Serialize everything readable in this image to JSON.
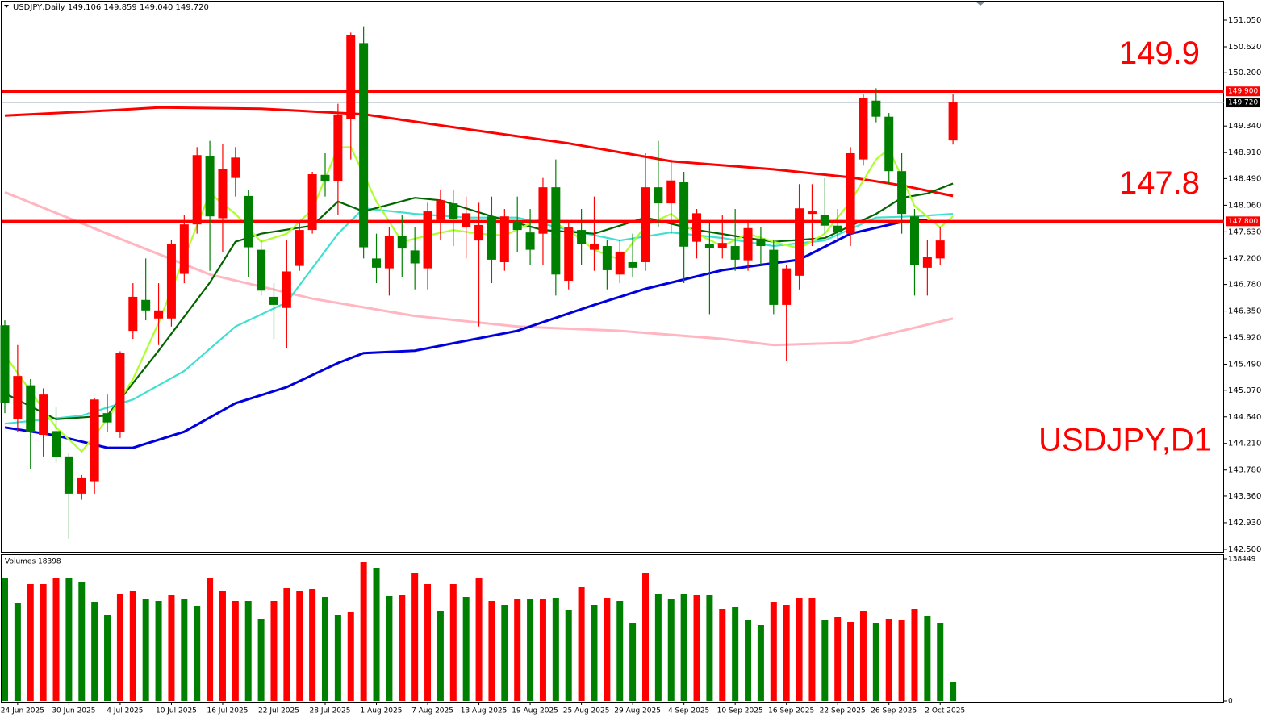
{
  "chart_data": {
    "type": "candlestick",
    "title": "USDJPY,Daily  149.106 149.859 149.040 149.720",
    "annotation": "USDJPY,D1",
    "up_color": "#ff0000",
    "down_color": "#008000",
    "categories": [
      null,
      "24 Jun 2025",
      null,
      null,
      null,
      "30 Jun 2025",
      null,
      null,
      null,
      "4 Jul 2025",
      null,
      null,
      null,
      "10 Jul 2025",
      null,
      null,
      null,
      "16 Jul 2025",
      null,
      null,
      null,
      "22 Jul 2025",
      null,
      null,
      null,
      "28 Jul 2025",
      null,
      null,
      null,
      "1 Aug 2025",
      null,
      null,
      null,
      "7 Aug 2025",
      null,
      null,
      null,
      "13 Aug 2025",
      null,
      null,
      null,
      "19 Aug 2025",
      null,
      null,
      null,
      "25 Aug 2025",
      null,
      null,
      null,
      "29 Aug 2025",
      null,
      null,
      null,
      "4 Sep 2025",
      null,
      null,
      null,
      "10 Sep 2025",
      null,
      null,
      null,
      "16 Sep 2025",
      null,
      null,
      null,
      "22 Sep 2025",
      null,
      null,
      null,
      "26 Sep 2025",
      null,
      null,
      null,
      "2 Oct 2025",
      null
    ],
    "open": [
      146.12,
      144.6,
      145.15,
      144.35,
      144.41,
      144.0,
      143.4,
      143.6,
      144.7,
      144.4,
      146.03,
      146.53,
      146.23,
      146.23,
      146.95,
      147.75,
      148.85,
      147.85,
      148.5,
      148.21,
      147.34,
      146.58,
      146.4,
      147.08,
      147.66,
      148.55,
      148.45,
      149.46,
      150.68,
      147.2,
      147.04,
      147.56,
      147.33,
      147.04,
      147.82,
      148.09,
      147.7,
      147.49,
      147.88,
      147.14,
      147.79,
      147.62,
      147.6,
      148.35,
      146.84,
      147.66,
      147.34,
      147.4,
      146.94,
      147.14,
      147.14,
      148.35,
      148.09,
      148.43,
      147.47,
      147.43,
      147.37,
      147.4,
      147.17,
      147.52,
      147.34,
      146.45,
      146.92,
      147.92,
      147.9,
      147.73,
      147.6,
      148.8,
      149.75,
      149.49,
      148.61,
      147.88,
      147.05,
      147.2,
      149.106
    ],
    "high": [
      146.2,
      145.8,
      145.25,
      145.1,
      144.8,
      144.05,
      143.7,
      144.95,
      145.0,
      145.7,
      146.8,
      147.2,
      146.8,
      147.5,
      147.9,
      149.0,
      149.1,
      149.05,
      149.0,
      148.3,
      147.5,
      146.8,
      147.5,
      147.8,
      148.6,
      148.9,
      149.7,
      150.85,
      150.95,
      147.6,
      147.7,
      147.9,
      147.7,
      148.1,
      148.3,
      148.3,
      148.2,
      148.1,
      148.2,
      148.0,
      148.2,
      148.0,
      148.5,
      148.8,
      147.8,
      148.0,
      148.2,
      147.5,
      147.5,
      147.6,
      148.9,
      149.1,
      148.8,
      148.6,
      148.0,
      147.8,
      147.9,
      148.0,
      147.8,
      147.7,
      147.5,
      147.1,
      148.4,
      148.4,
      148.5,
      148.0,
      149.0,
      149.85,
      149.95,
      149.55,
      148.9,
      148.0,
      147.5,
      147.7,
      149.859
    ],
    "low": [
      144.7,
      144.4,
      143.8,
      144.0,
      143.9,
      142.67,
      143.3,
      143.4,
      144.4,
      144.3,
      145.9,
      146.2,
      145.8,
      146.1,
      146.8,
      147.6,
      147.0,
      147.3,
      148.2,
      146.9,
      146.6,
      145.9,
      145.75,
      147.0,
      147.6,
      148.2,
      147.9,
      148.8,
      147.2,
      146.8,
      146.6,
      146.9,
      146.7,
      146.7,
      147.5,
      147.4,
      147.2,
      146.1,
      146.8,
      147.0,
      147.3,
      147.1,
      147.1,
      146.6,
      146.7,
      147.1,
      147.0,
      146.7,
      146.8,
      146.9,
      147.0,
      147.7,
      147.6,
      146.8,
      147.2,
      146.3,
      147.2,
      147.0,
      147.0,
      147.1,
      146.3,
      145.55,
      146.7,
      147.4,
      147.6,
      147.5,
      147.4,
      148.7,
      149.4,
      148.4,
      147.6,
      146.6,
      146.6,
      147.1,
      149.04
    ],
    "close": [
      144.86,
      145.3,
      144.4,
      145.0,
      143.99,
      143.4,
      143.66,
      144.92,
      144.55,
      145.68,
      146.58,
      146.36,
      146.36,
      147.43,
      147.75,
      148.87,
      147.88,
      148.64,
      148.83,
      147.38,
      146.68,
      146.45,
      146.99,
      147.66,
      148.56,
      148.45,
      149.52,
      150.81,
      147.38,
      147.05,
      147.56,
      147.36,
      147.12,
      147.96,
      148.14,
      147.83,
      147.93,
      147.74,
      147.18,
      147.88,
      147.66,
      147.34,
      148.35,
      146.94,
      147.7,
      147.43,
      147.44,
      147.01,
      147.31,
      147.05,
      148.35,
      148.09,
      148.46,
      147.39,
      147.93,
      147.37,
      147.45,
      147.18,
      147.69,
      147.4,
      146.45,
      147.04,
      148.01,
      147.96,
      147.73,
      147.62,
      148.9,
      149.79,
      149.49,
      148.61,
      147.92,
      147.1,
      147.23,
      147.49,
      149.72
    ],
    "ylim": [
      142.46,
      151.35
    ],
    "yticks": [
      {
        "value": 151.05,
        "label": "151.050"
      },
      {
        "value": 150.62,
        "label": "150.620"
      },
      {
        "value": 150.2,
        "label": "150.200"
      },
      {
        "value": 149.34,
        "label": "149.340"
      },
      {
        "value": 148.91,
        "label": "148.910"
      },
      {
        "value": 148.49,
        "label": "148.490"
      },
      {
        "value": 148.06,
        "label": "148.060"
      },
      {
        "value": 147.63,
        "label": "147.630"
      },
      {
        "value": 147.2,
        "label": "147.200"
      },
      {
        "value": 146.78,
        "label": "146.780"
      },
      {
        "value": 146.35,
        "label": "146.350"
      },
      {
        "value": 145.92,
        "label": "145.920"
      },
      {
        "value": 145.49,
        "label": "145.490"
      },
      {
        "value": 145.07,
        "label": "145.070"
      },
      {
        "value": 144.64,
        "label": "144.640"
      },
      {
        "value": 144.21,
        "label": "144.210"
      },
      {
        "value": 143.78,
        "label": "143.780"
      },
      {
        "value": 143.36,
        "label": "143.360"
      },
      {
        "value": 142.93,
        "label": "142.930"
      },
      {
        "value": 142.5,
        "label": "142.500"
      }
    ],
    "series": [
      {
        "color": "#ffb6c1",
        "x": [
          0,
          8,
          16,
          24,
          32,
          40,
          48,
          56,
          60,
          66,
          70,
          74
        ],
        "values": [
          148.27,
          147.6,
          146.94,
          146.55,
          146.27,
          146.1,
          146.03,
          145.9,
          145.8,
          145.84,
          146.03,
          146.23
        ]
      },
      {
        "color": "#ff0000",
        "x": [
          0,
          8,
          12,
          20,
          28,
          36,
          44,
          52,
          60,
          66,
          70,
          74
        ],
        "values": [
          149.51,
          149.59,
          149.64,
          149.62,
          149.53,
          149.29,
          149.06,
          148.77,
          148.64,
          148.51,
          148.38,
          148.21
        ]
      },
      {
        "color": "#0000dd",
        "x": [
          0,
          4,
          8,
          10,
          14,
          18,
          22,
          26,
          28,
          32,
          40,
          46,
          50,
          56,
          62,
          66,
          70,
          72
        ],
        "values": [
          144.47,
          144.34,
          144.14,
          144.14,
          144.4,
          144.86,
          145.12,
          145.51,
          145.67,
          145.71,
          146.03,
          146.45,
          146.71,
          147.01,
          147.18,
          147.6,
          147.79,
          147.82
        ]
      },
      {
        "color": "#40e0d0",
        "x": [
          0,
          6,
          10,
          14,
          18,
          22,
          26,
          28,
          32,
          36,
          40,
          44,
          48,
          52,
          56,
          60,
          64,
          68,
          71,
          74
        ],
        "values": [
          144.53,
          144.66,
          144.92,
          145.38,
          146.1,
          146.49,
          147.6,
          148.01,
          147.92,
          147.86,
          147.86,
          147.66,
          147.49,
          147.62,
          147.53,
          147.4,
          147.49,
          147.86,
          147.88,
          147.92
        ]
      },
      {
        "color": "#006400",
        "x": [
          0,
          4,
          8,
          12,
          16,
          18,
          20,
          24,
          26,
          28,
          32,
          34,
          38,
          42,
          46,
          50,
          54,
          58,
          60,
          64,
          68,
          70,
          72,
          74
        ],
        "values": [
          145.02,
          144.6,
          144.66,
          145.71,
          146.81,
          147.47,
          147.6,
          147.73,
          148.12,
          147.96,
          148.18,
          148.14,
          147.88,
          147.66,
          147.6,
          147.86,
          147.66,
          147.53,
          147.47,
          147.53,
          147.92,
          148.18,
          148.25,
          148.41
        ]
      },
      {
        "color": "#adff2f",
        "x": [
          0,
          4,
          6,
          8,
          10,
          12,
          14,
          16,
          18,
          20,
          22,
          24,
          26,
          27,
          29,
          31,
          33,
          35,
          37,
          39,
          42,
          44,
          46,
          48,
          50,
          52,
          54,
          56,
          58,
          60,
          62,
          64,
          66,
          68,
          69,
          71,
          73,
          74
        ],
        "values": [
          145.64,
          144.47,
          144.08,
          144.6,
          145.25,
          146.16,
          147.21,
          148.25,
          147.92,
          147.47,
          147.6,
          147.99,
          148.99,
          149.0,
          148.12,
          147.47,
          147.57,
          147.66,
          147.6,
          147.57,
          147.86,
          147.66,
          147.34,
          147.18,
          147.73,
          147.92,
          147.6,
          147.4,
          147.6,
          147.47,
          147.36,
          147.6,
          148.12,
          148.8,
          148.97,
          148.05,
          147.7,
          147.88
        ]
      }
    ],
    "hlines": [
      {
        "value": 149.9,
        "label": "149.900",
        "text": "149.9",
        "color": "#ff0000"
      },
      {
        "value": 147.8,
        "label": "147.800",
        "text": "147.8",
        "color": "#ff0000"
      }
    ],
    "price_line": {
      "value": 149.72,
      "label": "149.720",
      "color": "#a0a8b8"
    },
    "volume": {
      "label": "Volumes 18398",
      "values": [
        120350,
        95180,
        114060,
        114060,
        120350,
        120350,
        115630,
        96750,
        83380,
        104620,
        106980,
        99900,
        97540,
        103830,
        99900,
        92820,
        119560,
        106980,
        97540,
        97540,
        80230,
        97540,
        110120,
        106980,
        109340,
        101470,
        83380,
        86530,
        135300,
        129790,
        102260,
        103830,
        125070,
        114060,
        88100,
        114060,
        101470,
        119560,
        97540,
        93610,
        99110,
        99110,
        99900,
        100680,
        88890,
        110910,
        93610,
        100680,
        97540,
        76300,
        125070,
        104620,
        99110,
        104620,
        103040,
        103040,
        89670,
        91250,
        79450,
        73940,
        96750,
        93610,
        100680,
        100680,
        79450,
        81810,
        77090,
        87310,
        76300,
        80230,
        79450,
        89670,
        82590,
        76300,
        18398
      ],
      "colors": [
        "#008000",
        "#008000",
        "#ff0000",
        "#ff0000",
        "#ff0000",
        "#008000",
        "#008000",
        "#008000",
        "#008000",
        "#ff0000",
        "#ff0000",
        "#008000",
        "#008000",
        "#ff0000",
        "#008000",
        "#008000",
        "#ff0000",
        "#ff0000",
        "#ff0000",
        "#008000",
        "#008000",
        "#ff0000",
        "#ff0000",
        "#ff0000",
        "#ff0000",
        "#008000",
        "#008000",
        "#ff0000",
        "#ff0000",
        "#008000",
        "#008000",
        "#ff0000",
        "#ff0000",
        "#ff0000",
        "#008000",
        "#ff0000",
        "#008000",
        "#ff0000",
        "#ff0000",
        "#008000",
        "#ff0000",
        "#008000",
        "#ff0000",
        "#008000",
        "#008000",
        "#ff0000",
        "#008000",
        "#ff0000",
        "#008000",
        "#008000",
        "#ff0000",
        "#008000",
        "#008000",
        "#008000",
        "#ff0000",
        "#008000",
        "#ff0000",
        "#008000",
        "#008000",
        "#008000",
        "#ff0000",
        "#ff0000",
        "#ff0000",
        "#ff0000",
        "#008000",
        "#ff0000",
        "#ff0000",
        "#ff0000",
        "#008000",
        "#ff0000",
        "#ff0000",
        "#ff0000",
        "#008000",
        "#008000",
        "#008000"
      ],
      "ylim": [
        0,
        138449
      ],
      "yticks": [
        0,
        138449
      ]
    }
  }
}
